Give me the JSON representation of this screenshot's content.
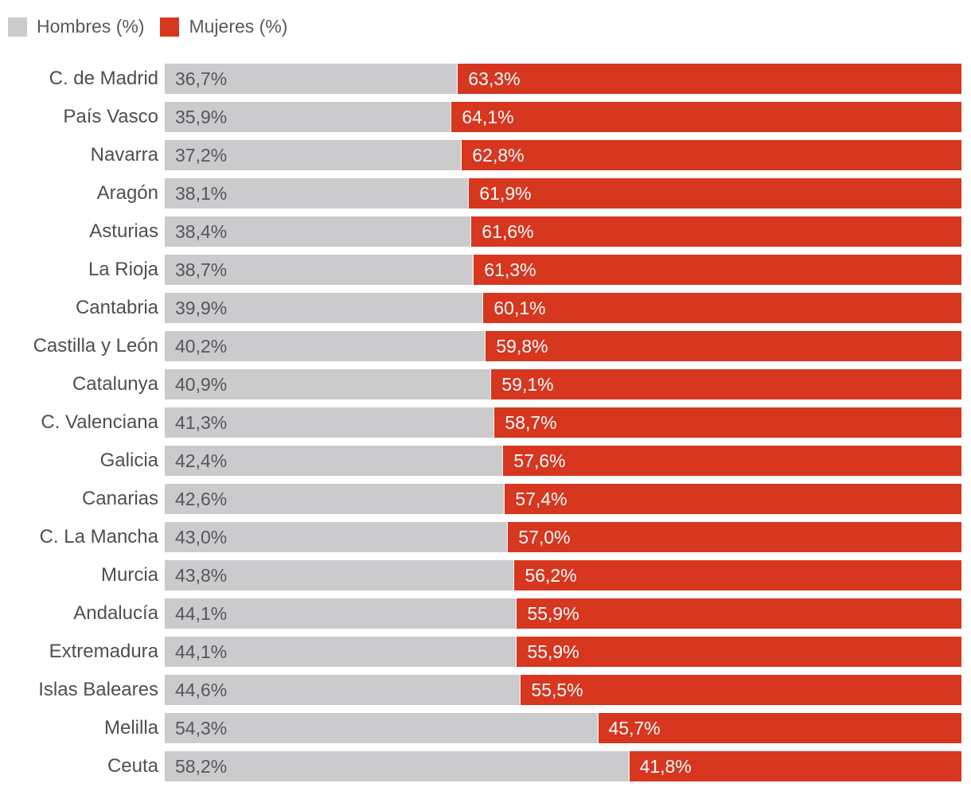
{
  "page": {
    "background": "#ffffff"
  },
  "legend": {
    "items": [
      {
        "label": "Hombres (%)",
        "color": "#cbcacd"
      },
      {
        "label": "Mujeres (%)",
        "color": "#d7361f"
      }
    ]
  },
  "chart_data": {
    "type": "bar",
    "orientation": "horizontal",
    "stacked": true,
    "unit": "%",
    "xlim": [
      0,
      100
    ],
    "grid": false,
    "axes_hidden": true,
    "legend_position": "top-left",
    "decimal_separator": ",",
    "value_label_position": "inside-start",
    "categories": [
      "C. de Madrid",
      "País Vasco",
      "Navarra",
      "Aragón",
      "Asturias",
      "La Rioja",
      "Cantabria",
      "Castilla y León",
      "Catalunya",
      "C. Valenciana",
      "Galicia",
      "Canarias",
      "C. La Mancha",
      "Murcia",
      "Andalucía",
      "Extremadura",
      "Islas Baleares",
      "Melilla",
      "Ceuta"
    ],
    "series": [
      {
        "name": "Hombres (%)",
        "color": "#cbcacd",
        "label_color": "#57575a",
        "values": [
          36.7,
          35.9,
          37.2,
          38.1,
          38.4,
          38.7,
          39.9,
          40.2,
          40.9,
          41.3,
          42.4,
          42.6,
          43.0,
          43.8,
          44.1,
          44.1,
          44.6,
          54.3,
          58.2
        ]
      },
      {
        "name": "Mujeres (%)",
        "color": "#d7361f",
        "label_color": "#ffffff",
        "values": [
          63.3,
          64.1,
          62.8,
          61.9,
          61.6,
          61.3,
          60.1,
          59.8,
          59.1,
          58.7,
          57.6,
          57.4,
          57.0,
          56.2,
          55.9,
          55.9,
          55.5,
          45.7,
          41.8
        ]
      }
    ]
  }
}
